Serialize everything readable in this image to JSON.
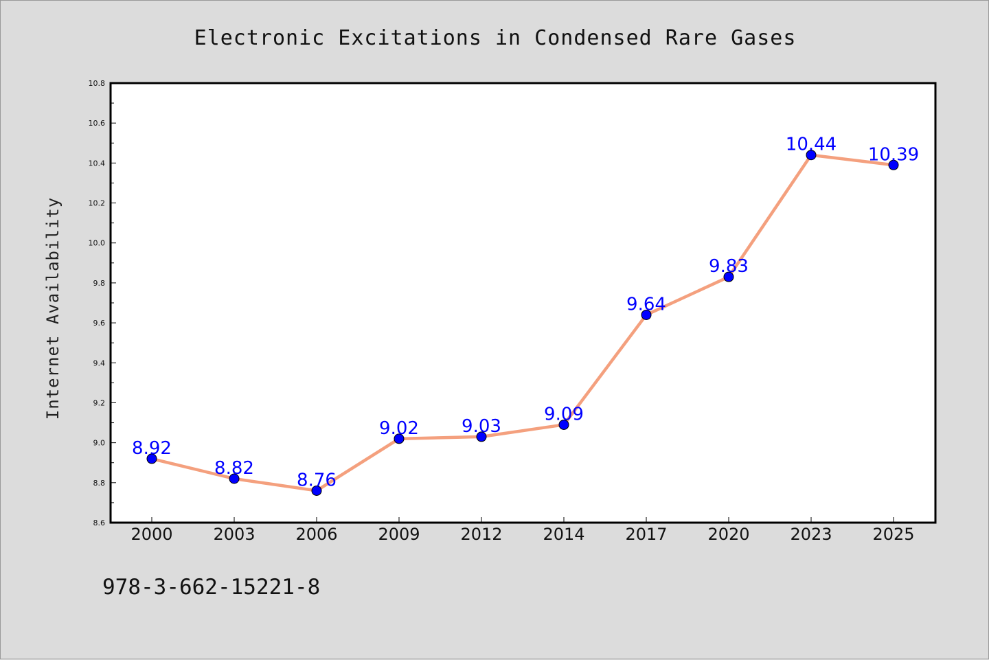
{
  "chart_data": {
    "type": "line",
    "title": "Electronic Excitations in Condensed Rare Gases",
    "xlabel": "",
    "ylabel": "Internet Availability",
    "categories": [
      "2000",
      "2003",
      "2006",
      "2009",
      "2012",
      "2014",
      "2017",
      "2020",
      "2023",
      "2025"
    ],
    "series": [
      {
        "values": [
          8.92,
          8.82,
          8.76,
          9.02,
          9.03,
          9.09,
          9.64,
          9.83,
          10.44,
          10.39
        ],
        "labels": [
          "8.92",
          "8.82",
          "8.76",
          "9.02",
          "9.03",
          "9.09",
          "9.64",
          "9.83",
          "10.44",
          "10.39"
        ],
        "line_color": "#f4a07e",
        "marker_color": "#0000ff"
      }
    ],
    "ylim": [
      8.6,
      10.8
    ],
    "yticks": [
      "8.6",
      "8.8",
      "9.0",
      "9.2",
      "9.4",
      "9.6",
      "9.8",
      "10.0",
      "10.2",
      "10.4",
      "10.6",
      "10.8"
    ],
    "grid": false,
    "legend": "none",
    "annotation": "978-3-662-15221-8",
    "colors": {
      "background": "#dcdcdc",
      "plot_area": "#ffffff",
      "axes": "#000000",
      "data_label": "#0000ff"
    }
  }
}
